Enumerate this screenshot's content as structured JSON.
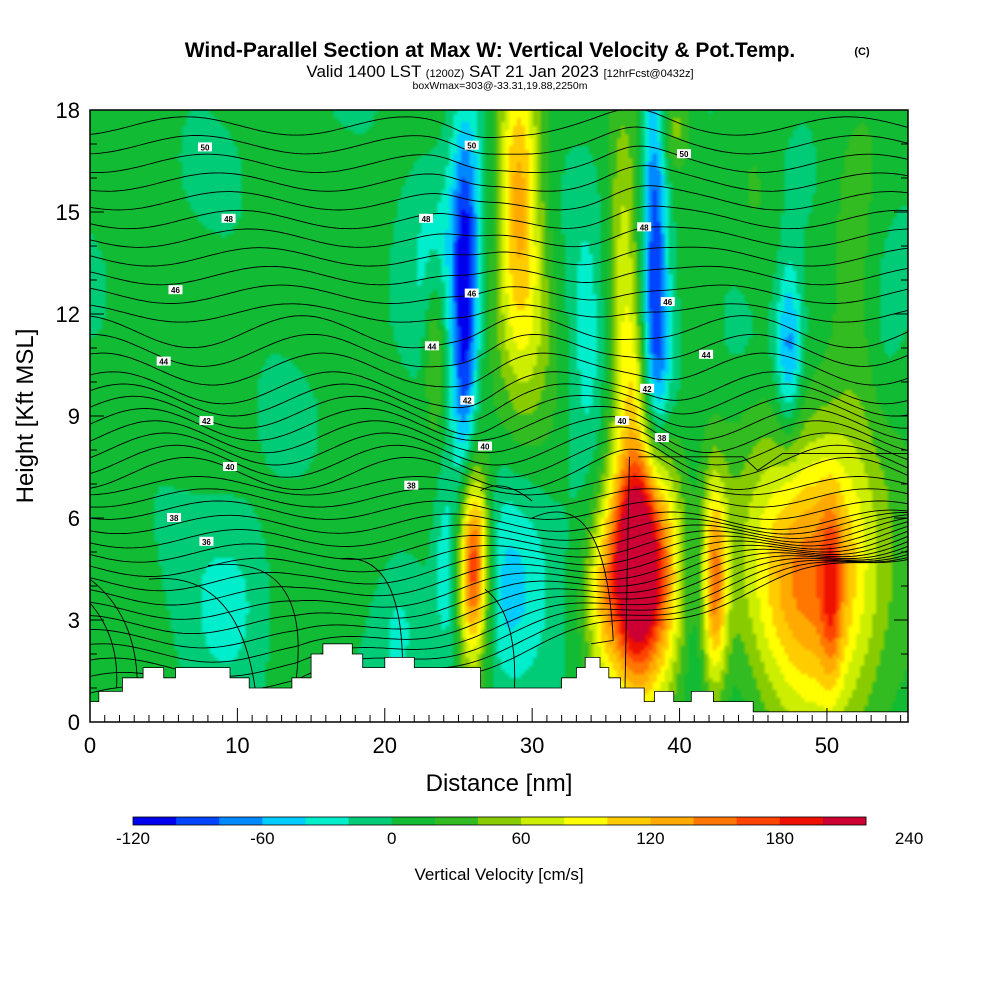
{
  "chart_data": {
    "type": "heatmap",
    "title": "Wind-Parallel Section at Max W: Vertical Velocity & Pot.Temp.",
    "title_suffix": "(C)",
    "subtitle_parts": [
      "Valid 1400 LST ",
      "(1200Z)",
      " SAT 21 Jan 2023 ",
      "[12hrFcst@0432z]"
    ],
    "subtitle2": "boxWmax=303@-33.31,19.88,2250m",
    "xlabel": "Distance [nm]",
    "ylabel": "Height [Kft MSL]",
    "xlim": [
      0,
      55.5
    ],
    "ylim": [
      0,
      18
    ],
    "x_ticks": [
      0,
      10,
      20,
      30,
      40,
      50
    ],
    "y_ticks": [
      0,
      3,
      6,
      9,
      12,
      15,
      18
    ],
    "colorbar": {
      "title": "Vertical Velocity [cm/s]",
      "min": -120,
      "step": 20,
      "labels": [
        -120,
        -60,
        0,
        60,
        120,
        180,
        240
      ],
      "colors": [
        "#0000ee",
        "#0044ff",
        "#0088ff",
        "#00ccff",
        "#00eecc",
        "#00cc77",
        "#11bb33",
        "#33bb22",
        "#88cc00",
        "#ccee00",
        "#ffff00",
        "#ffcc00",
        "#ffaa00",
        "#ff7700",
        "#ff4400",
        "#ee1100",
        "#cc0033"
      ]
    },
    "theta_contour_labels": [
      {
        "v": "50",
        "x": 7.8,
        "y": 16.9
      },
      {
        "v": "50",
        "x": 25.9,
        "y": 16.95
      },
      {
        "v": "50",
        "x": 40.3,
        "y": 16.7
      },
      {
        "v": "48",
        "x": 9.4,
        "y": 14.8
      },
      {
        "v": "48",
        "x": 22.8,
        "y": 14.8
      },
      {
        "v": "48",
        "x": 37.6,
        "y": 14.55
      },
      {
        "v": "46",
        "x": 5.8,
        "y": 12.7
      },
      {
        "v": "46",
        "x": 25.9,
        "y": 12.6
      },
      {
        "v": "46",
        "x": 39.2,
        "y": 12.35
      },
      {
        "v": "44",
        "x": 5.0,
        "y": 10.6
      },
      {
        "v": "44",
        "x": 23.2,
        "y": 11.05
      },
      {
        "v": "44",
        "x": 41.8,
        "y": 10.8
      },
      {
        "v": "42",
        "x": 7.9,
        "y": 8.85
      },
      {
        "v": "42",
        "x": 25.6,
        "y": 9.45
      },
      {
        "v": "42",
        "x": 37.8,
        "y": 9.8
      },
      {
        "v": "40",
        "x": 9.5,
        "y": 7.5
      },
      {
        "v": "40",
        "x": 26.8,
        "y": 8.1
      },
      {
        "v": "40",
        "x": 36.1,
        "y": 8.85
      },
      {
        "v": "38",
        "x": 5.7,
        "y": 6.0
      },
      {
        "v": "38",
        "x": 21.8,
        "y": 6.95
      },
      {
        "v": "38",
        "x": 38.8,
        "y": 8.35
      },
      {
        "v": "36",
        "x": 7.9,
        "y": 5.3
      }
    ],
    "updrafts": [
      {
        "x": 26.0,
        "y": 4.6,
        "sx": 0.75,
        "sy": 2.0,
        "peak": 200
      },
      {
        "x": 37.0,
        "y": 4.8,
        "sx": 1.2,
        "sy": 2.6,
        "peak": 250
      },
      {
        "x": 38.9,
        "y": 4.3,
        "sx": 1.3,
        "sy": 2.6,
        "peak": 95
      },
      {
        "x": 42.4,
        "y": 4.0,
        "sx": 0.6,
        "sy": 2.2,
        "peak": 130
      },
      {
        "x": 34.8,
        "y": 3.8,
        "sx": 0.9,
        "sy": 2.0,
        "peak": 70
      },
      {
        "x": 49.2,
        "y": 4.2,
        "sx": 3.1,
        "sy": 2.9,
        "peak": 150
      },
      {
        "x": 50.3,
        "y": 3.8,
        "sx": 0.5,
        "sy": 1.9,
        "peak": 60
      },
      {
        "x": 29.1,
        "y": 16.0,
        "sx": 1.0,
        "sy": 3.0,
        "peak": 110
      },
      {
        "x": 29.6,
        "y": 12.0,
        "sx": 1.5,
        "sy": 2.5,
        "peak": 45
      },
      {
        "x": 36.2,
        "y": 13.5,
        "sx": 0.8,
        "sy": 3.5,
        "peak": 60
      },
      {
        "x": 37.0,
        "y": 10.5,
        "sx": 0.8,
        "sy": 1.5,
        "peak": 50
      },
      {
        "x": 23.4,
        "y": 11.0,
        "sx": 0.5,
        "sy": 1.7,
        "peak": 50
      },
      {
        "x": 39.5,
        "y": 17.5,
        "sx": 1.0,
        "sy": 1.0,
        "peak": 50
      },
      {
        "x": 45.0,
        "y": 13.0,
        "sx": 1.5,
        "sy": 3.5,
        "peak": 30
      },
      {
        "x": 52.5,
        "y": 14.0,
        "sx": 1.5,
        "sy": 4.0,
        "peak": 25
      },
      {
        "x": 2.0,
        "y": 5.0,
        "sx": 2.0,
        "sy": 2.0,
        "peak": 10
      },
      {
        "x": 18.0,
        "y": 4.0,
        "sx": 2.5,
        "sy": 2.0,
        "peak": 10
      }
    ],
    "downdrafts": [
      {
        "x": 25.4,
        "y": 11.5,
        "sx": 0.6,
        "sy": 3.5,
        "peak": -100
      },
      {
        "x": 25.6,
        "y": 15.5,
        "sx": 1.0,
        "sy": 2.5,
        "peak": -50
      },
      {
        "x": 38.3,
        "y": 14.5,
        "sx": 0.6,
        "sy": 4.5,
        "peak": -95
      },
      {
        "x": 38.5,
        "y": 11.0,
        "sx": 1.0,
        "sy": 2.0,
        "peak": -50
      },
      {
        "x": 47.4,
        "y": 11.0,
        "sx": 0.6,
        "sy": 1.8,
        "peak": -70
      },
      {
        "x": 28.4,
        "y": 3.8,
        "sx": 2.2,
        "sy": 2.4,
        "peak": -45
      },
      {
        "x": 24.2,
        "y": 4.5,
        "sx": 0.6,
        "sy": 2.0,
        "peak": -40
      },
      {
        "x": 9.5,
        "y": 3.5,
        "sx": 2.0,
        "sy": 1.8,
        "peak": -42
      },
      {
        "x": 21.0,
        "y": 3.0,
        "sx": 1.3,
        "sy": 1.8,
        "peak": -30
      },
      {
        "x": 40.8,
        "y": 4.2,
        "sx": 0.7,
        "sy": 2.3,
        "peak": -20
      },
      {
        "x": 23.2,
        "y": 14.0,
        "sx": 1.2,
        "sy": 2.0,
        "peak": -30
      },
      {
        "x": 33.7,
        "y": 11.0,
        "sx": 1.0,
        "sy": 3.0,
        "peak": -35
      },
      {
        "x": 44.5,
        "y": 12.0,
        "sx": 1.5,
        "sy": 2.0,
        "peak": -30
      },
      {
        "x": 53.8,
        "y": 11.5,
        "sx": 1.0,
        "sy": 2.5,
        "peak": -25
      },
      {
        "x": 48.0,
        "y": 16.0,
        "sx": 1.5,
        "sy": 1.5,
        "peak": -25
      }
    ],
    "terrain": [
      [
        0,
        0.6
      ],
      [
        0.6,
        0.6
      ],
      [
        0.6,
        0.9
      ],
      [
        2.2,
        0.9
      ],
      [
        2.2,
        1.3
      ],
      [
        3.6,
        1.3
      ],
      [
        3.6,
        1.6
      ],
      [
        5.0,
        1.6
      ],
      [
        5.0,
        1.3
      ],
      [
        5.8,
        1.3
      ],
      [
        5.8,
        1.6
      ],
      [
        9.5,
        1.6
      ],
      [
        9.5,
        1.3
      ],
      [
        10.8,
        1.3
      ],
      [
        10.8,
        1.0
      ],
      [
        13.7,
        1.0
      ],
      [
        13.7,
        1.3
      ],
      [
        15.0,
        1.3
      ],
      [
        15.0,
        2.0
      ],
      [
        15.8,
        2.0
      ],
      [
        15.8,
        2.3
      ],
      [
        17.8,
        2.3
      ],
      [
        17.8,
        2.0
      ],
      [
        18.5,
        2.0
      ],
      [
        18.5,
        1.6
      ],
      [
        20.0,
        1.6
      ],
      [
        20.0,
        1.9
      ],
      [
        22.0,
        1.9
      ],
      [
        22.0,
        1.6
      ],
      [
        26.5,
        1.6
      ],
      [
        26.5,
        1.0
      ],
      [
        31.5,
        1.0
      ],
      [
        31.5,
        1.0
      ],
      [
        32.0,
        1.0
      ],
      [
        32.0,
        1.3
      ],
      [
        33.0,
        1.3
      ],
      [
        33.0,
        1.6
      ],
      [
        33.6,
        1.6
      ],
      [
        33.6,
        1.9
      ],
      [
        34.6,
        1.9
      ],
      [
        34.6,
        1.6
      ],
      [
        35.2,
        1.6
      ],
      [
        35.2,
        1.3
      ],
      [
        36.0,
        1.3
      ],
      [
        36.0,
        1.0
      ],
      [
        37.6,
        1.0
      ],
      [
        37.6,
        0.6
      ],
      [
        38.3,
        0.6
      ],
      [
        38.3,
        0.9
      ],
      [
        39.6,
        0.9
      ],
      [
        39.6,
        0.6
      ],
      [
        40.8,
        0.6
      ],
      [
        40.8,
        0.9
      ],
      [
        42.3,
        0.9
      ],
      [
        42.3,
        0.6
      ],
      [
        45.0,
        0.6
      ],
      [
        45.0,
        0.3
      ],
      [
        55.5,
        0.3
      ]
    ]
  }
}
